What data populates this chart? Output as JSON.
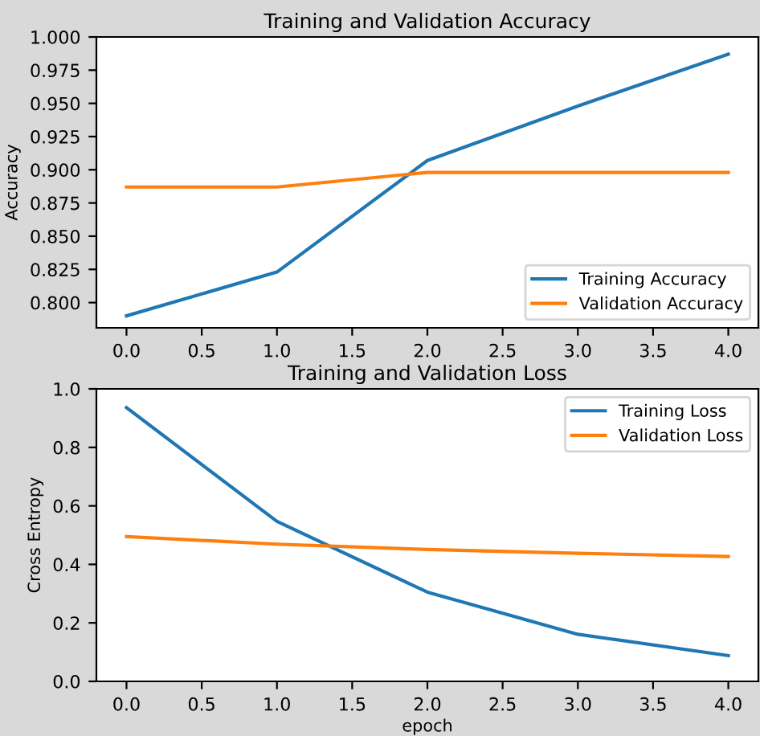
{
  "chart_data": [
    {
      "type": "line",
      "title": "Training and Validation Accuracy",
      "ylabel": "Accuracy",
      "x": [
        0,
        1,
        2,
        3,
        4
      ],
      "series": [
        {
          "name": "Training Accuracy",
          "color": "#1f77b4",
          "values": [
            0.79,
            0.823,
            0.907,
            0.948,
            0.987
          ]
        },
        {
          "name": "Validation Accuracy",
          "color": "#ff7f0e",
          "values": [
            0.887,
            0.887,
            0.898,
            0.898,
            0.898
          ]
        }
      ],
      "xlim": [
        -0.2,
        4.2
      ],
      "xticks": [
        {
          "value": 0,
          "label": "0.0"
        },
        {
          "value": 0.5,
          "label": "0.5"
        },
        {
          "value": 1,
          "label": "1.0"
        },
        {
          "value": 1.5,
          "label": "1.5"
        },
        {
          "value": 2,
          "label": "2.0"
        },
        {
          "value": 2.5,
          "label": "2.5"
        },
        {
          "value": 3,
          "label": "3.0"
        },
        {
          "value": 3.5,
          "label": "3.5"
        },
        {
          "value": 4,
          "label": "4.0"
        }
      ],
      "ylim": [
        0.781,
        1.0
      ],
      "yticks": [
        {
          "value": 0.8,
          "label": "0.800"
        },
        {
          "value": 0.825,
          "label": "0.825"
        },
        {
          "value": 0.85,
          "label": "0.850"
        },
        {
          "value": 0.875,
          "label": "0.875"
        },
        {
          "value": 0.9,
          "label": "0.900"
        },
        {
          "value": 0.925,
          "label": "0.925"
        },
        {
          "value": 0.95,
          "label": "0.950"
        },
        {
          "value": 0.975,
          "label": "0.975"
        },
        {
          "value": 1.0,
          "label": "1.000"
        }
      ],
      "legend": "bottom right"
    },
    {
      "type": "line",
      "title": "Training and Validation Loss",
      "xlabel": "epoch",
      "ylabel": "Cross Entropy",
      "x": [
        0,
        1,
        2,
        3,
        4
      ],
      "series": [
        {
          "name": "Training Loss",
          "color": "#1f77b4",
          "values": [
            0.936,
            0.547,
            0.305,
            0.161,
            0.088
          ]
        },
        {
          "name": "Validation Loss",
          "color": "#ff7f0e",
          "values": [
            0.495,
            0.469,
            0.451,
            0.438,
            0.427
          ]
        }
      ],
      "xlim": [
        -0.2,
        4.2
      ],
      "xticks": [
        {
          "value": 0,
          "label": "0.0"
        },
        {
          "value": 0.5,
          "label": "0.5"
        },
        {
          "value": 1,
          "label": "1.0"
        },
        {
          "value": 1.5,
          "label": "1.5"
        },
        {
          "value": 2,
          "label": "2.0"
        },
        {
          "value": 2.5,
          "label": "2.5"
        },
        {
          "value": 3,
          "label": "3.0"
        },
        {
          "value": 3.5,
          "label": "3.5"
        },
        {
          "value": 4,
          "label": "4.0"
        }
      ],
      "ylim": [
        0.0,
        1.0
      ],
      "yticks": [
        {
          "value": 0,
          "label": "0.0"
        },
        {
          "value": 0.2,
          "label": "0.2"
        },
        {
          "value": 0.4,
          "label": "0.4"
        },
        {
          "value": 0.6,
          "label": "0.6"
        },
        {
          "value": 0.8,
          "label": "0.8"
        },
        {
          "value": 1.0,
          "label": "1.0"
        }
      ],
      "legend": "top right"
    }
  ]
}
